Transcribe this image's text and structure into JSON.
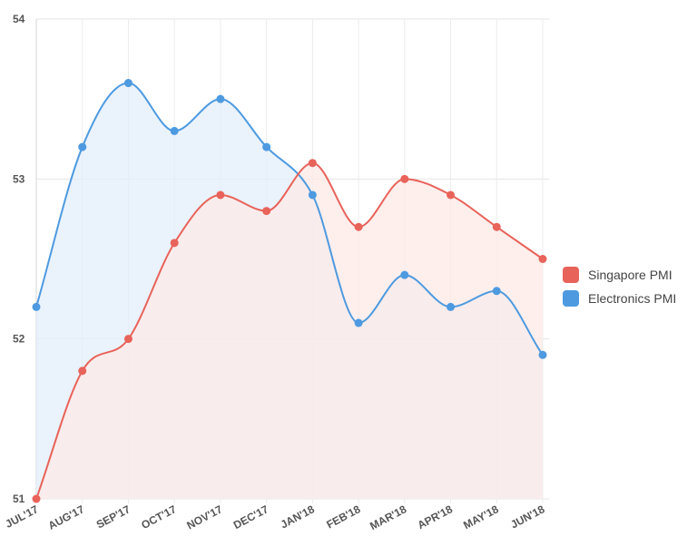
{
  "chart_data": {
    "type": "line",
    "categories": [
      "JUL'17",
      "AUG'17",
      "SEP'17",
      "OCT'17",
      "NOV'17",
      "DEC'17",
      "JAN'18",
      "FEB'18",
      "MAR'18",
      "APR'18",
      "MAY'18",
      "JUN'18"
    ],
    "series": [
      {
        "name": "Singapore PMI",
        "values": [
          51.0,
          51.8,
          52.0,
          52.6,
          52.9,
          52.8,
          53.1,
          52.7,
          53.0,
          52.9,
          52.7,
          52.5
        ],
        "color": "#e8635a",
        "fill": "#fde9e7"
      },
      {
        "name": "Electronics PMI",
        "values": [
          52.2,
          53.2,
          53.6,
          53.3,
          53.5,
          53.2,
          52.9,
          52.1,
          52.4,
          52.2,
          52.3,
          51.9
        ],
        "color": "#4d9ae0",
        "fill": "#e3eefb"
      }
    ],
    "ylim": [
      51,
      54
    ],
    "yticks": [
      "51",
      "52",
      "53",
      "54"
    ],
    "grid": true,
    "smooth": true,
    "legend_position": "right",
    "title": "",
    "xlabel": "",
    "ylabel": ""
  }
}
